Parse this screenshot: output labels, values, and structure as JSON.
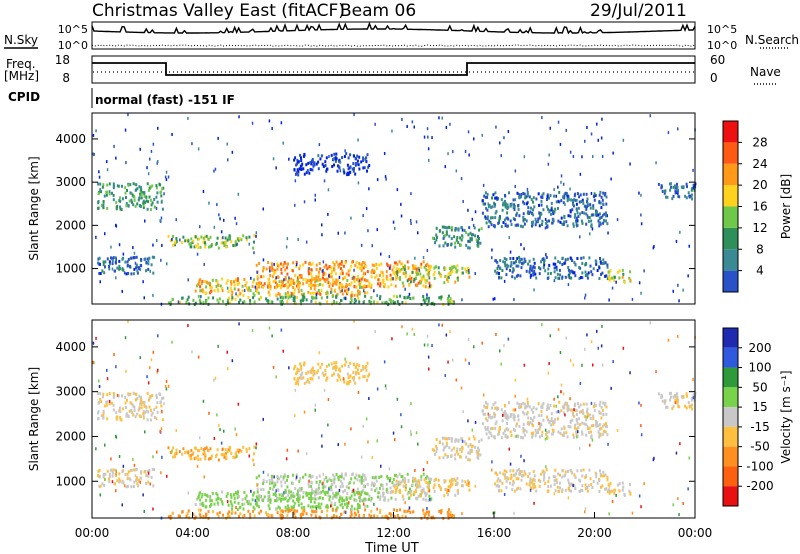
{
  "header": {
    "station": "Christmas Valley East (fitACF)",
    "beam": "Beam 06",
    "date": "29/Jul/2011"
  },
  "aux_panels": {
    "nsky_label": "N.Sky",
    "nsearch_label": "N.Search",
    "noise_ticks": [
      "10^5",
      "10^0"
    ],
    "freq_label": "Freq.",
    "freq_unit": "[MHz]",
    "freq_ticks": [
      "18",
      "8"
    ],
    "nave_label": "Nave",
    "nave_ticks": [
      "60",
      "0"
    ],
    "cpid_label": "CPID",
    "cpid_value": "normal (fast) -151 IF"
  },
  "chart_data": [
    {
      "type": "heatmap",
      "name": "Power",
      "ylabel": "Slant Range [km]",
      "xlabel": "",
      "ylim": [
        180,
        4600
      ],
      "yticks": [
        1000,
        2000,
        3000,
        4000
      ],
      "xlim": [
        0,
        24
      ],
      "colorbar": {
        "label": "Power [dB]",
        "ticks": [
          "4",
          "8",
          "12",
          "16",
          "20",
          "24",
          "28"
        ],
        "levels": [
          0,
          4,
          8,
          12,
          16,
          20,
          24,
          28,
          30
        ],
        "colors": [
          "#0022dd",
          "#2a52c8",
          "#3a8a96",
          "#2f8f5a",
          "#70c84a",
          "#ffd21e",
          "#ff9a18",
          "#ff5a14",
          "#ee1010"
        ]
      }
    },
    {
      "type": "heatmap",
      "name": "Velocity",
      "ylabel": "Slant Range [km]",
      "xlabel": "Time UT",
      "ylim": [
        180,
        4600
      ],
      "yticks": [
        1000,
        2000,
        3000,
        4000
      ],
      "xlim": [
        0,
        24
      ],
      "xticks": [
        "00:00",
        "04:00",
        "08:00",
        "12:00",
        "16:00",
        "20:00",
        "00:00"
      ],
      "colorbar": {
        "label": "Velocity [m s⁻¹]",
        "ticks": [
          "200",
          "100",
          "50",
          "15",
          "-15",
          "-50",
          "-100",
          "-200"
        ],
        "colors": [
          "#1e2ab0",
          "#2f5ae0",
          "#2f9a3a",
          "#78d24a",
          "#c8c8c8",
          "#ffc040",
          "#ff9020",
          "#ff6010",
          "#e81010"
        ]
      }
    }
  ]
}
